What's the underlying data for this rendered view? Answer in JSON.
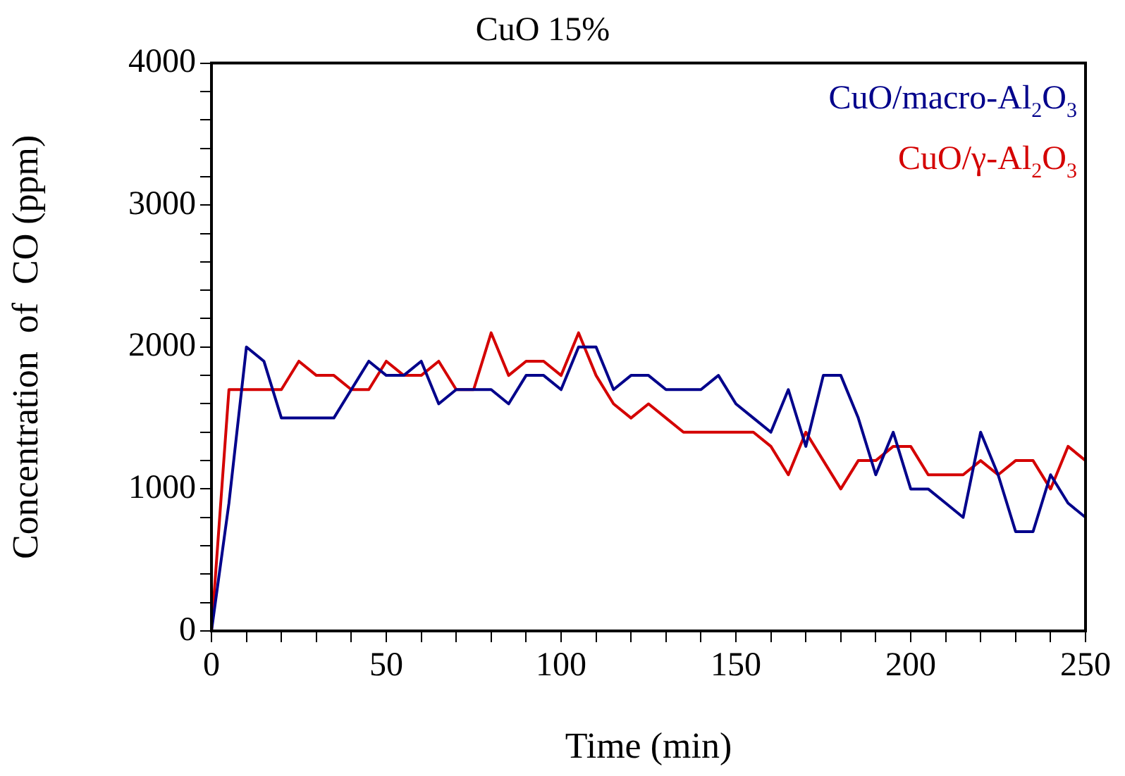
{
  "chart_data": {
    "type": "line",
    "title": "CuO 15%",
    "xlabel": "Time (min)",
    "ylabel": "Concentration  of  CO (ppm)",
    "x": [
      0,
      5,
      10,
      15,
      20,
      25,
      30,
      35,
      40,
      45,
      50,
      55,
      60,
      65,
      70,
      75,
      80,
      85,
      90,
      95,
      100,
      105,
      110,
      115,
      120,
      125,
      130,
      135,
      140,
      145,
      150,
      155,
      160,
      165,
      170,
      175,
      180,
      185,
      190,
      195,
      200,
      205,
      210,
      215,
      220,
      225,
      230,
      235,
      240,
      245,
      250
    ],
    "series": [
      {
        "name": "CuO/macro-Al$_{2}$O$_{3}$",
        "color": "#00008b",
        "values": [
          0,
          900,
          2000,
          1900,
          1500,
          1500,
          1500,
          1500,
          1700,
          1900,
          1800,
          1800,
          1900,
          1600,
          1700,
          1700,
          1700,
          1600,
          1800,
          1800,
          1700,
          2000,
          2000,
          1700,
          1800,
          1800,
          1700,
          1700,
          1700,
          1800,
          1600,
          1500,
          1400,
          1700,
          1300,
          1800,
          1800,
          1500,
          1100,
          1400,
          1000,
          1000,
          900,
          800,
          1400,
          1100,
          700,
          700,
          1100,
          900,
          800
        ]
      },
      {
        "name": "CuO/γ-Al$_{2}$O$_{3}$",
        "color": "#d40000",
        "values": [
          0,
          1700,
          1700,
          1700,
          1700,
          1900,
          1800,
          1800,
          1700,
          1700,
          1900,
          1800,
          1800,
          1900,
          1700,
          1700,
          2100,
          1800,
          1900,
          1900,
          1800,
          2100,
          1800,
          1600,
          1500,
          1600,
          1500,
          1400,
          1400,
          1400,
          1400,
          1400,
          1300,
          1100,
          1400,
          1200,
          1000,
          1200,
          1200,
          1300,
          1300,
          1100,
          1100,
          1100,
          1200,
          1100,
          1200,
          1200,
          1000,
          1300,
          1200
        ]
      }
    ],
    "xlim": [
      0,
      250
    ],
    "xticks": [
      0,
      {
        "value": 10,
        "label": null
      },
      {
        "value": 20,
        "label": null
      },
      {
        "value": 30,
        "label": null
      },
      {
        "value": 40,
        "label": null
      },
      50,
      {
        "value": 60,
        "label": null
      },
      {
        "value": 70,
        "label": null
      },
      {
        "value": 80,
        "label": null
      },
      {
        "value": 90,
        "label": null
      },
      100,
      {
        "value": 110,
        "label": null
      },
      {
        "value": 120,
        "label": null
      },
      {
        "value": 130,
        "label": null
      },
      {
        "value": 140,
        "label": null
      },
      150,
      {
        "value": 160,
        "label": null
      },
      {
        "value": 170,
        "label": null
      },
      {
        "value": 180,
        "label": null
      },
      {
        "value": 190,
        "label": null
      },
      200,
      {
        "value": 210,
        "label": null
      },
      {
        "value": 220,
        "label": null
      },
      {
        "value": 230,
        "label": null
      },
      {
        "value": 240,
        "label": null
      },
      250
    ],
    "ylim": [
      0,
      4000
    ],
    "yticks": [
      0,
      {
        "value": 200,
        "label": null
      },
      {
        "value": 400,
        "label": null
      },
      {
        "value": 600,
        "label": null
      },
      {
        "value": 800,
        "label": null
      },
      1000,
      {
        "value": 1200,
        "label": null
      },
      {
        "value": 1400,
        "label": null
      },
      {
        "value": 1600,
        "label": null
      },
      {
        "value": 1800,
        "label": null
      },
      2000,
      {
        "value": 2200,
        "label": null
      },
      {
        "value": 2400,
        "label": null
      },
      {
        "value": 2600,
        "label": null
      },
      {
        "value": 2800,
        "label": null
      },
      3000,
      {
        "value": 3200,
        "label": null
      },
      {
        "value": 3400,
        "label": null
      },
      {
        "value": 3600,
        "label": null
      },
      {
        "value": 3800,
        "label": null
      },
      4000
    ],
    "grid": false,
    "legend": "top right",
    "marker": "none",
    "line_style": "solid"
  }
}
